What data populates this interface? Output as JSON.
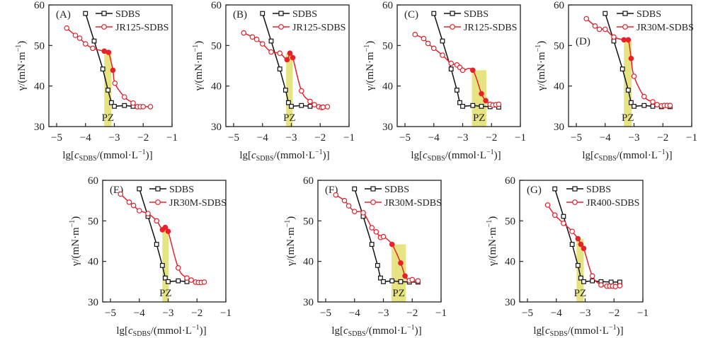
{
  "figure": {
    "xlabel_prefix": "lg[",
    "xlabel_var": "c",
    "xlabel_sub": "SDBS",
    "xlabel_suffix": "/(mmol·L",
    "xlabel_sup": "−1",
    "xlabel_end": ")]",
    "ylabel_main": "γ/(mN·m",
    "ylabel_sup": "−1",
    "ylabel_end": ")",
    "pz_label": "PZ",
    "colors": {
      "sdbs": "#111111",
      "polymer": "#e8202a",
      "pz": "#e2df6a"
    }
  },
  "chart_data": [
    {
      "panel": "(A)",
      "type": "line",
      "xlim": [
        -5,
        -1
      ],
      "ylim": [
        30,
        60
      ],
      "xticks": [
        -5,
        -4,
        -3,
        -2,
        -1
      ],
      "yticks": [
        30,
        40,
        50,
        60
      ],
      "pz_range": [
        -3.35,
        -3.1
      ],
      "legend_position": "top-right",
      "series": [
        {
          "name": "SDBS",
          "marker": "square-open",
          "x": [
            -4.0,
            -3.7,
            -3.4,
            -3.22,
            -3.1,
            -3.0,
            -2.65,
            -2.35
          ],
          "y": [
            57.9,
            51.1,
            44.2,
            39.0,
            35.9,
            35.0,
            35.2,
            35.0
          ]
        },
        {
          "name": "JR125-SDBS",
          "marker": "circle-open",
          "x": [
            -4.65,
            -4.35,
            -4.2,
            -4.0,
            -3.75,
            -3.35,
            -3.2,
            -3.05,
            -2.98,
            -2.65,
            -2.35,
            -2.2,
            -2.1,
            -2.0,
            -1.75
          ],
          "y": [
            54.3,
            52.5,
            51.8,
            50.4,
            49.3,
            48.6,
            48.3,
            43.9,
            40.7,
            37.3,
            35.8,
            34.9,
            34.9,
            34.9,
            34.9
          ],
          "filled": [
            false,
            false,
            false,
            false,
            false,
            true,
            true,
            true,
            false,
            false,
            false,
            false,
            false,
            false,
            false
          ]
        }
      ]
    },
    {
      "panel": "(B)",
      "type": "line",
      "xlim": [
        -5,
        -1
      ],
      "ylim": [
        30,
        60
      ],
      "xticks": [
        -5,
        -4,
        -3,
        -2,
        -1
      ],
      "yticks": [
        30,
        40,
        50,
        60
      ],
      "pz_range": [
        -3.18,
        -2.95
      ],
      "legend_position": "top-right",
      "series": [
        {
          "name": "SDBS",
          "marker": "square-open",
          "x": [
            -4.0,
            -3.7,
            -3.4,
            -3.2,
            -3.1,
            -3.0,
            -2.65,
            -2.35
          ],
          "y": [
            57.9,
            51.1,
            44.2,
            39.0,
            35.9,
            35.0,
            35.2,
            35.0
          ]
        },
        {
          "name": "JR125-SDBS",
          "marker": "circle-open",
          "x": [
            -4.65,
            -4.35,
            -4.2,
            -4.0,
            -3.7,
            -3.4,
            -3.15,
            -3.05,
            -2.95,
            -2.65,
            -2.35,
            -2.2,
            -2.05,
            -1.95,
            -1.9,
            -1.75
          ],
          "y": [
            53.1,
            52.1,
            51.5,
            50.4,
            48.4,
            48.1,
            46.5,
            48.1,
            47.0,
            38.8,
            36.2,
            35.4,
            34.9,
            34.7,
            34.8,
            34.9
          ],
          "filled": [
            false,
            false,
            false,
            false,
            false,
            false,
            true,
            true,
            true,
            false,
            false,
            false,
            false,
            false,
            false,
            false
          ]
        }
      ]
    },
    {
      "panel": "(C)",
      "type": "line",
      "xlim": [
        -5,
        -1
      ],
      "ylim": [
        30,
        60
      ],
      "xticks": [
        -5,
        -4,
        -3,
        -2,
        -1
      ],
      "yticks": [
        30,
        40,
        50,
        60
      ],
      "pz_range": [
        -2.68,
        -2.18
      ],
      "legend_position": "top-right",
      "series": [
        {
          "name": "SDBS",
          "marker": "square-open",
          "x": [
            -4.0,
            -3.7,
            -3.4,
            -3.2,
            -3.1,
            -3.0,
            -2.65,
            -2.35,
            -2.05,
            -1.75
          ],
          "y": [
            57.9,
            51.1,
            44.2,
            39.0,
            35.9,
            35.0,
            35.2,
            35.0,
            34.9,
            34.8
          ]
        },
        {
          "name": "JR125-SDBS",
          "marker": "circle-open",
          "x": [
            -4.65,
            -4.35,
            -4.2,
            -4.0,
            -3.7,
            -3.4,
            -3.2,
            -3.1,
            -3.0,
            -2.65,
            -2.35,
            -2.2,
            -2.05,
            -1.95,
            -1.85,
            -1.75
          ],
          "y": [
            52.7,
            51.7,
            50.5,
            49.3,
            47.6,
            45.6,
            45.2,
            44.6,
            43.9,
            43.9,
            38.1,
            36.4,
            35.5,
            35.3,
            35.4,
            35.5
          ],
          "filled": [
            false,
            false,
            false,
            false,
            false,
            false,
            false,
            false,
            false,
            true,
            true,
            true,
            false,
            false,
            false,
            false
          ]
        }
      ]
    },
    {
      "panel": "(D)",
      "type": "line",
      "xlim": [
        -5,
        -1
      ],
      "ylim": [
        30,
        60
      ],
      "xticks": [
        -5,
        -4,
        -3,
        -2,
        -1
      ],
      "yticks": [
        30,
        40,
        50,
        60
      ],
      "pz_range": [
        -3.35,
        -3.08
      ],
      "legend_position": "top-right",
      "series": [
        {
          "name": "SDBS",
          "marker": "square-open",
          "x": [
            -4.0,
            -3.7,
            -3.4,
            -3.2,
            -3.1,
            -3.0,
            -2.65,
            -2.35,
            -2.05,
            -1.75
          ],
          "y": [
            57.9,
            51.1,
            44.2,
            39.0,
            35.9,
            35.0,
            35.2,
            35.0,
            34.9,
            34.9
          ]
        },
        {
          "name": "JR30M-SDBS",
          "marker": "circle-open",
          "x": [
            -4.65,
            -4.35,
            -4.2,
            -4.0,
            -3.7,
            -3.35,
            -3.2,
            -3.1,
            -3.0,
            -2.65,
            -2.35,
            -2.2,
            -2.05,
            -1.95,
            -1.85,
            -1.75
          ],
          "y": [
            56.6,
            54.8,
            54.0,
            54.0,
            52.1,
            51.4,
            51.4,
            46.8,
            42.4,
            37.4,
            36.1,
            35.4,
            35.1,
            35.2,
            35.2,
            35.2
          ],
          "filled": [
            false,
            false,
            false,
            false,
            false,
            true,
            true,
            true,
            false,
            false,
            false,
            false,
            false,
            false,
            false,
            false
          ]
        }
      ]
    },
    {
      "panel": "(E)",
      "type": "line",
      "xlim": [
        -5,
        -1
      ],
      "ylim": [
        30,
        60
      ],
      "xticks": [
        -5,
        -4,
        -3,
        -2,
        -1
      ],
      "yticks": [
        30,
        40,
        50,
        60
      ],
      "pz_range": [
        -3.2,
        -2.98
      ],
      "legend_position": "top-right",
      "series": [
        {
          "name": "SDBS",
          "marker": "square-open",
          "x": [
            -4.0,
            -3.7,
            -3.4,
            -3.2,
            -3.1,
            -3.0,
            -2.65,
            -2.35
          ],
          "y": [
            57.9,
            51.1,
            44.2,
            39.0,
            35.9,
            35.0,
            35.2,
            35.0
          ]
        },
        {
          "name": "JR30M-SDBS",
          "marker": "circle-open",
          "x": [
            -4.65,
            -4.35,
            -4.2,
            -4.0,
            -3.7,
            -3.4,
            -3.2,
            -3.1,
            -3.0,
            -2.65,
            -2.35,
            -2.2,
            -2.05,
            -1.95,
            -1.85,
            -1.75
          ],
          "y": [
            56.6,
            54.6,
            53.8,
            52.5,
            51.8,
            50.0,
            47.8,
            48.4,
            47.4,
            38.4,
            35.9,
            35.4,
            34.9,
            34.8,
            34.8,
            34.9
          ],
          "filled": [
            false,
            false,
            false,
            false,
            false,
            false,
            true,
            true,
            true,
            false,
            false,
            false,
            false,
            false,
            false,
            false
          ]
        }
      ]
    },
    {
      "panel": "(F)",
      "type": "line",
      "xlim": [
        -5,
        -1
      ],
      "ylim": [
        30,
        60
      ],
      "xticks": [
        -5,
        -4,
        -3,
        -2,
        -1
      ],
      "yticks": [
        30,
        40,
        50,
        60
      ],
      "pz_range": [
        -2.72,
        -2.22
      ],
      "legend_position": "top-right",
      "series": [
        {
          "name": "SDBS",
          "marker": "square-open",
          "x": [
            -4.0,
            -3.7,
            -3.4,
            -3.2,
            -3.1,
            -3.0,
            -2.7,
            -2.4,
            -2.1,
            -1.8
          ],
          "y": [
            57.9,
            51.1,
            44.2,
            39.0,
            35.9,
            35.0,
            35.2,
            35.0,
            34.9,
            34.9
          ]
        },
        {
          "name": "JR30M-SDBS",
          "marker": "circle-open",
          "x": [
            -4.65,
            -4.35,
            -4.2,
            -4.0,
            -3.7,
            -3.4,
            -3.25,
            -3.1,
            -3.0,
            -2.7,
            -2.4,
            -2.25,
            -2.1,
            -2.0,
            -1.8
          ],
          "y": [
            56.4,
            55.0,
            53.7,
            52.3,
            52.0,
            48.3,
            47.3,
            45.9,
            46.1,
            44.2,
            39.6,
            36.4,
            35.3,
            35.5,
            35.2
          ],
          "filled": [
            false,
            false,
            false,
            false,
            false,
            false,
            false,
            false,
            false,
            true,
            true,
            true,
            false,
            false,
            false
          ]
        }
      ]
    },
    {
      "panel": "(G)",
      "type": "line",
      "xlim": [
        -5,
        -1
      ],
      "ylim": [
        30,
        60
      ],
      "xticks": [
        -5,
        -4,
        -3,
        -2,
        -1
      ],
      "yticks": [
        30,
        40,
        50,
        60
      ],
      "pz_range": [
        -3.3,
        -3.05
      ],
      "legend_position": "top-right",
      "series": [
        {
          "name": "SDBS",
          "marker": "square-open",
          "x": [
            -4.05,
            -3.75,
            -3.45,
            -3.25,
            -3.15,
            -3.05,
            -2.75,
            -2.45,
            -2.1,
            -1.8
          ],
          "y": [
            57.9,
            51.1,
            44.2,
            39.0,
            35.9,
            35.0,
            35.2,
            35.0,
            34.9,
            34.9
          ]
        },
        {
          "name": "JR400-SDBS",
          "marker": "circle-open",
          "x": [
            -4.3,
            -4.05,
            -3.75,
            -3.45,
            -3.25,
            -3.15,
            -3.05,
            -2.75,
            -2.45,
            -2.25,
            -2.15,
            -2.05,
            -1.95,
            -1.8
          ],
          "y": [
            53.9,
            51.4,
            49.4,
            47.4,
            45.6,
            44.2,
            43.2,
            36.4,
            34.2,
            33.9,
            33.9,
            33.9,
            33.8,
            34.0
          ],
          "filled": [
            false,
            false,
            false,
            false,
            true,
            true,
            true,
            false,
            false,
            false,
            false,
            false,
            false,
            false
          ]
        }
      ]
    }
  ]
}
